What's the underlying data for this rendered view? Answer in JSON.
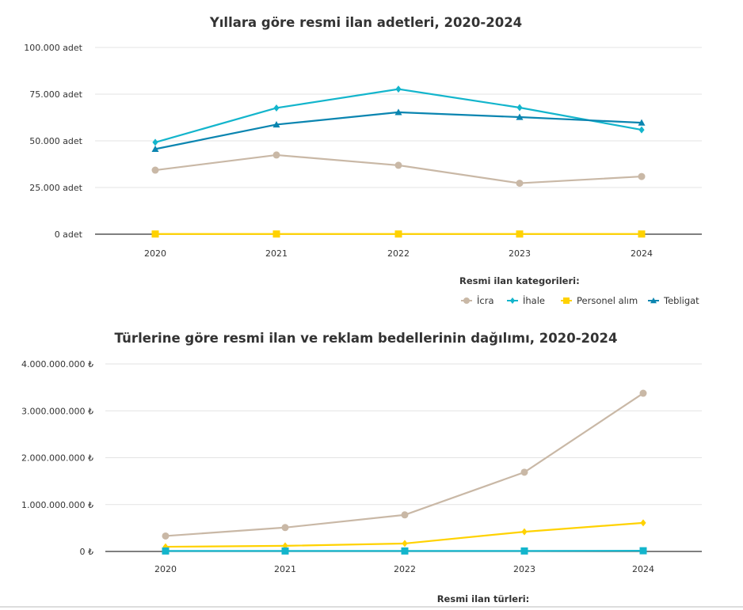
{
  "chart_data": [
    {
      "type": "line",
      "title": "Yıllara göre resmi ilan adetleri, 2020-2024",
      "categories": [
        "2020",
        "2021",
        "2022",
        "2023",
        "2024"
      ],
      "ylim": [
        0,
        100000
      ],
      "yticks": [
        0,
        25000,
        50000,
        75000,
        100000
      ],
      "ytick_labels": [
        "0 adet",
        "25.000 adet",
        "50.000 adet",
        "75.000 adet",
        "100.000 adet"
      ],
      "grid": true,
      "legend_title": "Resmi ilan kategorileri:",
      "legend_position": "bottom-right",
      "series": [
        {
          "name": "İcra",
          "color": "#c9b8a6",
          "marker": "circle",
          "values": [
            34300,
            42400,
            36900,
            27300,
            30900
          ]
        },
        {
          "name": "İhale",
          "color": "#13b5cc",
          "marker": "diamond",
          "values": [
            49200,
            67600,
            77700,
            67800,
            55900
          ]
        },
        {
          "name": "Personel alım",
          "color": "#ffd200",
          "marker": "square",
          "values": [
            100,
            100,
            100,
            100,
            100
          ]
        },
        {
          "name": "Tebligat",
          "color": "#0a85b0",
          "marker": "triangle",
          "values": [
            45600,
            58700,
            65300,
            62700,
            59700
          ]
        }
      ]
    },
    {
      "type": "line",
      "title": "Türlerine göre resmi ilan ve reklam bedellerinin dağılımı, 2020-2024",
      "categories": [
        "2020",
        "2021",
        "2022",
        "2023",
        "2024"
      ],
      "ylim": [
        0,
        4000000000
      ],
      "yticks": [
        0,
        1000000000,
        2000000000,
        3000000000,
        4000000000
      ],
      "ytick_labels": [
        "0 ₺",
        "1.000.000.000 ₺",
        "2.000.000.000 ₺",
        "3.000.000.000 ₺",
        "4.000.000.000 ₺"
      ],
      "grid": true,
      "legend_title": "Resmi ilan türleri:",
      "legend_position": "bottom",
      "series": [
        {
          "color": "#c9b8a6",
          "marker": "circle",
          "values": [
            330000000,
            510000000,
            780000000,
            1690000000,
            3375000000
          ]
        },
        {
          "color": "#ffd200",
          "marker": "diamond",
          "values": [
            100000000,
            120000000,
            170000000,
            420000000,
            610000000
          ]
        },
        {
          "color": "#13b5cc",
          "marker": "square",
          "values": [
            10000000,
            10000000,
            10000000,
            10000000,
            15000000
          ]
        }
      ]
    }
  ]
}
